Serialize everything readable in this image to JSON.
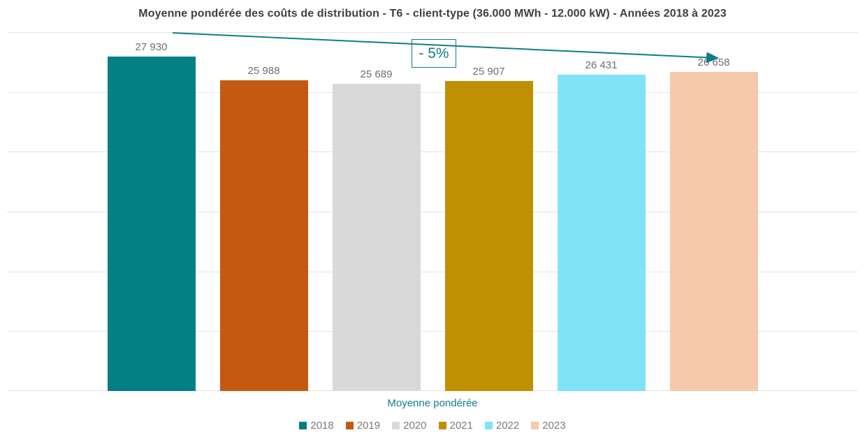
{
  "chart_data": {
    "type": "bar",
    "title": "Moyenne pondérée des coûts de distribution - T6 - client-type (36.000 MWh - 12.000 kW) - Années 2018 à 2023",
    "categories": [
      "Moyenne pondérée"
    ],
    "series": [
      {
        "name": "2018",
        "values": [
          27930
        ],
        "label": "27 930",
        "color": "#028084"
      },
      {
        "name": "2019",
        "values": [
          25988
        ],
        "label": "25 988",
        "color": "#C45A11"
      },
      {
        "name": "2020",
        "values": [
          25689
        ],
        "label": "25 689",
        "color": "#D9D9D9"
      },
      {
        "name": "2021",
        "values": [
          25907
        ],
        "label": "25 907",
        "color": "#BF9002"
      },
      {
        "name": "2022",
        "values": [
          26431
        ],
        "label": "26 431",
        "color": "#80E2F7"
      },
      {
        "name": "2023",
        "values": [
          26658
        ],
        "label": "26 658",
        "color": "#F6C9AC"
      }
    ],
    "xlabel": "Moyenne pondérée",
    "ylabel": "",
    "ylim": [
      0,
      30000
    ],
    "gridline_step": 5000,
    "grid": true,
    "legend_position": "bottom",
    "annotation": {
      "label": "- 5%"
    },
    "trend_arrow": {
      "from_series": "2018",
      "to_series": "2023",
      "direction": "down"
    }
  },
  "colors": {
    "accent_teal": "#0E7E86",
    "title_text": "#404040",
    "value_label_text": "#6E6E6E",
    "legend_text": "#7A7A7A",
    "gridline": "#E4E4E4"
  }
}
